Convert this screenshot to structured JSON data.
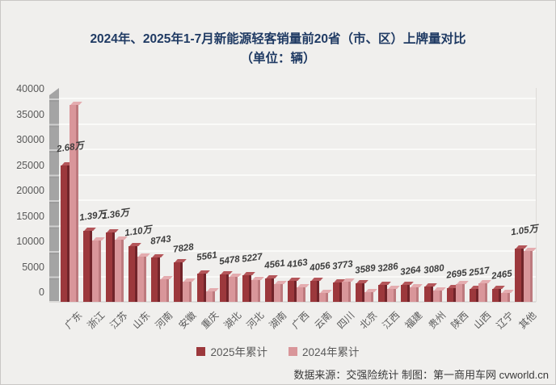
{
  "title": {
    "line1": "2024年、2025年1-7月新能源轻客销量前20省（市、区）上牌量对比",
    "line2": "（单位：辆）"
  },
  "chart_data": {
    "type": "bar",
    "title": "2024年、2025年1-7月新能源轻客销量前20省（市、区）上牌量对比（单位：辆）",
    "ylabel": "辆",
    "ylim": [
      0,
      40000
    ],
    "ytick_step": 5000,
    "yticks": [
      "0",
      "5000",
      "10000",
      "15000",
      "20000",
      "25000",
      "30000",
      "35000",
      "40000"
    ],
    "grid": true,
    "legend_position": "bottom",
    "categories": [
      "广东",
      "浙江",
      "江苏",
      "山东",
      "河南",
      "安徽",
      "重庆",
      "湖北",
      "河北",
      "湖南",
      "广西",
      "云南",
      "四川",
      "北京",
      "江西",
      "福建",
      "贵州",
      "陕西",
      "山西",
      "辽宁",
      "其他"
    ],
    "series": [
      {
        "name": "2025年累计",
        "color": "#9c383c",
        "values": [
          26800,
          13900,
          13600,
          11000,
          8743,
          7828,
          5561,
          5478,
          5227,
          4561,
          4163,
          4056,
          3773,
          3589,
          3286,
          3264,
          3080,
          2695,
          2517,
          2465,
          10500
        ],
        "labels": [
          "2.68万",
          "1.39万",
          "1.36万",
          "1.10万",
          "8743",
          "7828",
          "5561",
          "5478",
          "5227",
          "4561",
          "4163",
          "4056",
          "3773",
          "3589",
          "3286",
          "3264",
          "3080",
          "2695",
          "2517",
          "2465",
          "1.05万"
        ]
      },
      {
        "name": "2024年累计",
        "color": "#d9969a",
        "values": [
          38800,
          12100,
          12300,
          8900,
          4400,
          3900,
          2000,
          4900,
          4300,
          3500,
          2800,
          1700,
          4000,
          1900,
          2600,
          2900,
          2300,
          3500,
          3700,
          1700,
          10000
        ]
      }
    ],
    "colors": {
      "s2025_front": "#9c383c",
      "s2025_side": "#71242a",
      "s2025_top": "#b4565a",
      "s2024_front": "#d9969a",
      "s2024_side": "#bd7a7e",
      "s2024_top": "#e4acaf",
      "title_color": "#1f3a63",
      "axis_text": "#595959",
      "wall": "#a4a4a4"
    }
  },
  "legend": {
    "items": [
      {
        "label": "2025年累计",
        "color": "#9c383c"
      },
      {
        "label": "2024年累计",
        "color": "#d9969a"
      }
    ]
  },
  "footer": {
    "text": "数据来源：交强险统计 制图：第一商用车网 cvworld.cn"
  }
}
